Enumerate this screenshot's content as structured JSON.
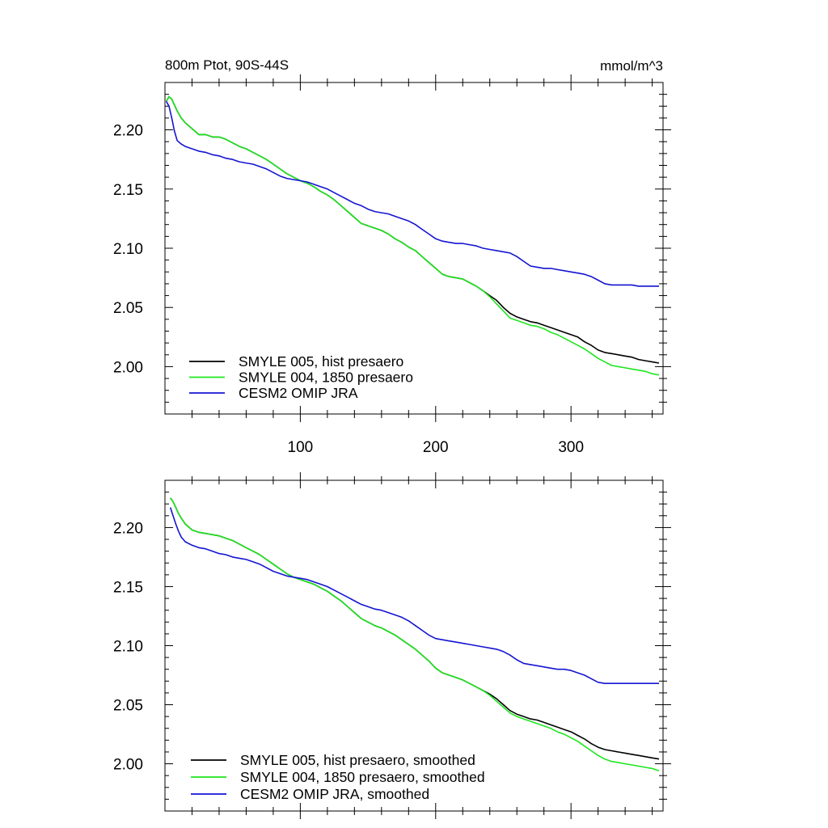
{
  "chart_data": [
    {
      "type": "line",
      "title_left": "800m Ptot, 90S-44S",
      "title_right": "mmol/m^3",
      "xlim": [
        0,
        368
      ],
      "ylim": [
        1.96,
        2.24
      ],
      "x_ticks": [
        "100",
        "200",
        "300"
      ],
      "y_ticks": [
        "2.20",
        "2.15",
        "2.10",
        "2.05",
        "2.00"
      ],
      "legend_position": "bottom-left",
      "series": [
        {
          "name": "SMYLE 005, hist presaero",
          "color": "#000000",
          "x": [
            1,
            3,
            5,
            7,
            9,
            12,
            15,
            20,
            25,
            30,
            35,
            40,
            45,
            50,
            55,
            60,
            65,
            70,
            75,
            80,
            85,
            90,
            95,
            100,
            105,
            110,
            115,
            120,
            125,
            130,
            135,
            140,
            145,
            150,
            155,
            160,
            165,
            170,
            175,
            180,
            185,
            190,
            195,
            200,
            205,
            210,
            215,
            220,
            225,
            230,
            235,
            240,
            245,
            250,
            255,
            260,
            265,
            270,
            275,
            280,
            285,
            290,
            295,
            300,
            305,
            310,
            315,
            320,
            325,
            330,
            335,
            340,
            345,
            350,
            355,
            360,
            365
          ],
          "y": [
            2.224,
            2.228,
            2.226,
            2.221,
            2.216,
            2.21,
            2.206,
            2.201,
            2.196,
            2.196,
            2.194,
            2.194,
            2.192,
            2.189,
            2.186,
            2.184,
            2.181,
            2.178,
            2.175,
            2.171,
            2.167,
            2.163,
            2.16,
            2.157,
            2.155,
            2.152,
            2.148,
            2.145,
            2.141,
            2.136,
            2.131,
            2.126,
            2.121,
            2.119,
            2.117,
            2.115,
            2.112,
            2.108,
            2.105,
            2.101,
            2.098,
            2.093,
            2.088,
            2.083,
            2.078,
            2.076,
            2.075,
            2.074,
            2.071,
            2.068,
            2.064,
            2.06,
            2.056,
            2.05,
            2.045,
            2.042,
            2.04,
            2.038,
            2.037,
            2.035,
            2.033,
            2.031,
            2.029,
            2.027,
            2.025,
            2.021,
            2.018,
            2.014,
            2.012,
            2.011,
            2.01,
            2.009,
            2.008,
            2.006,
            2.005,
            2.004,
            2.003
          ]
        },
        {
          "name": "SMYLE 004, 1850 presaero",
          "color": "#1ee61e",
          "x": [
            1,
            3,
            5,
            7,
            9,
            12,
            15,
            20,
            25,
            30,
            35,
            40,
            45,
            50,
            55,
            60,
            65,
            70,
            75,
            80,
            85,
            90,
            95,
            100,
            105,
            110,
            115,
            120,
            125,
            130,
            135,
            140,
            145,
            150,
            155,
            160,
            165,
            170,
            175,
            180,
            185,
            190,
            195,
            200,
            205,
            210,
            215,
            220,
            225,
            230,
            235,
            240,
            245,
            250,
            255,
            260,
            265,
            270,
            275,
            280,
            285,
            290,
            295,
            300,
            305,
            310,
            315,
            320,
            325,
            330,
            335,
            340,
            345,
            350,
            355,
            360,
            365
          ],
          "y": [
            2.224,
            2.228,
            2.226,
            2.221,
            2.216,
            2.21,
            2.206,
            2.201,
            2.196,
            2.196,
            2.194,
            2.194,
            2.192,
            2.189,
            2.186,
            2.184,
            2.181,
            2.178,
            2.175,
            2.171,
            2.167,
            2.163,
            2.16,
            2.157,
            2.155,
            2.152,
            2.148,
            2.145,
            2.141,
            2.136,
            2.131,
            2.126,
            2.121,
            2.119,
            2.117,
            2.115,
            2.112,
            2.108,
            2.105,
            2.101,
            2.098,
            2.093,
            2.088,
            2.083,
            2.078,
            2.076,
            2.075,
            2.074,
            2.071,
            2.068,
            2.064,
            2.059,
            2.053,
            2.047,
            2.041,
            2.039,
            2.037,
            2.035,
            2.034,
            2.032,
            2.029,
            2.027,
            2.024,
            2.021,
            2.018,
            2.015,
            2.011,
            2.007,
            2.004,
            2.001,
            2.0,
            1.999,
            1.998,
            1.997,
            1.996,
            1.994,
            1.993
          ]
        },
        {
          "name": "CESM2 OMIP JRA",
          "color": "#1414d2",
          "x": [
            1,
            3,
            5,
            7,
            9,
            12,
            15,
            20,
            25,
            30,
            35,
            40,
            45,
            50,
            55,
            60,
            65,
            70,
            75,
            80,
            85,
            90,
            95,
            100,
            105,
            110,
            115,
            120,
            125,
            130,
            135,
            140,
            145,
            150,
            155,
            160,
            165,
            170,
            175,
            180,
            185,
            190,
            195,
            200,
            205,
            210,
            215,
            220,
            225,
            230,
            235,
            240,
            245,
            250,
            255,
            260,
            265,
            270,
            275,
            280,
            285,
            290,
            295,
            300,
            305,
            310,
            315,
            320,
            325,
            330,
            335,
            340,
            345,
            350,
            355,
            360,
            365
          ],
          "y": [
            2.224,
            2.22,
            2.21,
            2.199,
            2.191,
            2.188,
            2.186,
            2.184,
            2.182,
            2.181,
            2.179,
            2.178,
            2.176,
            2.175,
            2.173,
            2.172,
            2.171,
            2.169,
            2.167,
            2.164,
            2.161,
            2.159,
            2.158,
            2.157,
            2.156,
            2.154,
            2.152,
            2.15,
            2.147,
            2.144,
            2.141,
            2.138,
            2.136,
            2.133,
            2.131,
            2.13,
            2.129,
            2.127,
            2.125,
            2.123,
            2.12,
            2.116,
            2.112,
            2.108,
            2.106,
            2.105,
            2.104,
            2.104,
            2.103,
            2.102,
            2.1,
            2.099,
            2.098,
            2.097,
            2.096,
            2.093,
            2.089,
            2.085,
            2.084,
            2.083,
            2.083,
            2.082,
            2.081,
            2.08,
            2.079,
            2.078,
            2.076,
            2.073,
            2.07,
            2.069,
            2.069,
            2.069,
            2.069,
            2.068,
            2.068,
            2.068,
            2.068
          ]
        }
      ]
    },
    {
      "type": "line",
      "xlim": [
        0,
        368
      ],
      "ylim": [
        1.96,
        2.24
      ],
      "x_ticks": [],
      "y_ticks": [
        "2.20",
        "2.15",
        "2.10",
        "2.05",
        "2.00"
      ],
      "legend_position": "bottom-left",
      "series": [
        {
          "name": "SMYLE 005, hist presaero, smoothed",
          "color": "#000000",
          "x": [
            4,
            6,
            8,
            10,
            12,
            15,
            20,
            25,
            30,
            35,
            40,
            45,
            50,
            55,
            60,
            65,
            70,
            75,
            80,
            85,
            90,
            95,
            100,
            105,
            110,
            115,
            120,
            125,
            130,
            135,
            140,
            145,
            150,
            155,
            160,
            165,
            170,
            175,
            180,
            185,
            190,
            195,
            200,
            205,
            210,
            215,
            220,
            225,
            230,
            235,
            240,
            245,
            250,
            255,
            260,
            265,
            270,
            275,
            280,
            285,
            290,
            295,
            300,
            305,
            310,
            315,
            320,
            325,
            330,
            335,
            340,
            345,
            350,
            355,
            360,
            365
          ],
          "y": [
            2.225,
            2.222,
            2.217,
            2.212,
            2.208,
            2.203,
            2.198,
            2.196,
            2.195,
            2.194,
            2.193,
            2.191,
            2.189,
            2.186,
            2.183,
            2.18,
            2.177,
            2.173,
            2.169,
            2.165,
            2.161,
            2.158,
            2.156,
            2.154,
            2.152,
            2.149,
            2.146,
            2.142,
            2.138,
            2.133,
            2.128,
            2.123,
            2.12,
            2.117,
            2.115,
            2.112,
            2.109,
            2.105,
            2.101,
            2.097,
            2.092,
            2.087,
            2.081,
            2.077,
            2.075,
            2.073,
            2.071,
            2.068,
            2.065,
            2.062,
            2.059,
            2.055,
            2.05,
            2.045,
            2.042,
            2.04,
            2.038,
            2.037,
            2.035,
            2.033,
            2.031,
            2.029,
            2.027,
            2.024,
            2.021,
            2.017,
            2.014,
            2.012,
            2.011,
            2.01,
            2.009,
            2.008,
            2.007,
            2.006,
            2.005,
            2.004
          ]
        },
        {
          "name": "SMYLE 004, 1850 presaero, smoothed",
          "color": "#1ee61e",
          "x": [
            4,
            6,
            8,
            10,
            12,
            15,
            20,
            25,
            30,
            35,
            40,
            45,
            50,
            55,
            60,
            65,
            70,
            75,
            80,
            85,
            90,
            95,
            100,
            105,
            110,
            115,
            120,
            125,
            130,
            135,
            140,
            145,
            150,
            155,
            160,
            165,
            170,
            175,
            180,
            185,
            190,
            195,
            200,
            205,
            210,
            215,
            220,
            225,
            230,
            235,
            240,
            245,
            250,
            255,
            260,
            265,
            270,
            275,
            280,
            285,
            290,
            295,
            300,
            305,
            310,
            315,
            320,
            325,
            330,
            335,
            340,
            345,
            350,
            355,
            360,
            365
          ],
          "y": [
            2.225,
            2.222,
            2.217,
            2.212,
            2.208,
            2.203,
            2.198,
            2.196,
            2.195,
            2.194,
            2.193,
            2.191,
            2.189,
            2.186,
            2.183,
            2.18,
            2.177,
            2.173,
            2.169,
            2.165,
            2.161,
            2.158,
            2.156,
            2.154,
            2.152,
            2.149,
            2.146,
            2.142,
            2.138,
            2.133,
            2.128,
            2.123,
            2.12,
            2.117,
            2.115,
            2.112,
            2.109,
            2.105,
            2.101,
            2.097,
            2.092,
            2.087,
            2.081,
            2.077,
            2.075,
            2.073,
            2.071,
            2.068,
            2.065,
            2.062,
            2.058,
            2.053,
            2.048,
            2.043,
            2.04,
            2.038,
            2.036,
            2.034,
            2.032,
            2.03,
            2.027,
            2.025,
            2.022,
            2.019,
            2.015,
            2.011,
            2.007,
            2.004,
            2.002,
            2.001,
            2.0,
            1.999,
            1.998,
            1.997,
            1.996,
            1.994
          ]
        },
        {
          "name": "CESM2 OMIP JRA, smoothed",
          "color": "#1414d2",
          "x": [
            4,
            6,
            8,
            10,
            12,
            15,
            20,
            25,
            30,
            35,
            40,
            45,
            50,
            55,
            60,
            65,
            70,
            75,
            80,
            85,
            90,
            95,
            100,
            105,
            110,
            115,
            120,
            125,
            130,
            135,
            140,
            145,
            150,
            155,
            160,
            165,
            170,
            175,
            180,
            185,
            190,
            195,
            200,
            205,
            210,
            215,
            220,
            225,
            230,
            235,
            240,
            245,
            250,
            255,
            260,
            265,
            270,
            275,
            280,
            285,
            290,
            295,
            300,
            305,
            310,
            315,
            320,
            325,
            330,
            335,
            340,
            345,
            350,
            355,
            360,
            365
          ],
          "y": [
            2.217,
            2.21,
            2.203,
            2.197,
            2.192,
            2.188,
            2.185,
            2.183,
            2.182,
            2.18,
            2.178,
            2.177,
            2.175,
            2.174,
            2.173,
            2.171,
            2.169,
            2.166,
            2.163,
            2.161,
            2.159,
            2.158,
            2.157,
            2.156,
            2.154,
            2.152,
            2.15,
            2.147,
            2.144,
            2.141,
            2.138,
            2.135,
            2.133,
            2.131,
            2.13,
            2.128,
            2.126,
            2.124,
            2.121,
            2.117,
            2.113,
            2.109,
            2.106,
            2.105,
            2.104,
            2.103,
            2.102,
            2.101,
            2.1,
            2.099,
            2.098,
            2.097,
            2.095,
            2.092,
            2.088,
            2.085,
            2.084,
            2.083,
            2.082,
            2.081,
            2.08,
            2.08,
            2.079,
            2.077,
            2.075,
            2.072,
            2.069,
            2.068,
            2.068,
            2.068,
            2.068,
            2.068,
            2.068,
            2.068,
            2.068,
            2.068
          ]
        }
      ]
    }
  ]
}
